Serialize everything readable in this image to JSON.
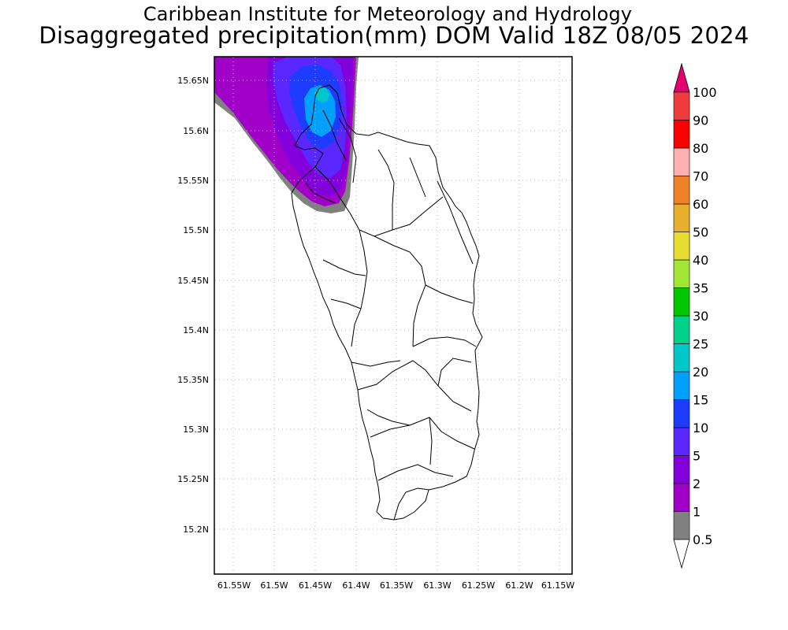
{
  "titles": {
    "line1": "Caribbean Institute for Meteorology and Hydrology",
    "line2": "Disaggregated precipitation(mm) DOM Valid 18Z 08/05 2024"
  },
  "axes": {
    "lat_labels": [
      "15.65N",
      "15.6N",
      "15.55N",
      "15.5N",
      "15.45N",
      "15.4N",
      "15.35N",
      "15.3N",
      "15.25N",
      "15.2N"
    ],
    "lon_labels": [
      "61.55W",
      "61.5W",
      "61.45W",
      "61.4W",
      "61.35W",
      "61.3W",
      "61.25W",
      "61.2W",
      "61.15W"
    ],
    "lat_values": [
      15.65,
      15.6,
      15.55,
      15.5,
      15.45,
      15.4,
      15.35,
      15.3,
      15.25,
      15.2
    ],
    "lon_values": [
      -61.55,
      -61.5,
      -61.45,
      -61.4,
      -61.35,
      -61.3,
      -61.25,
      -61.2,
      -61.15
    ]
  },
  "colorbar": {
    "levels": [
      "0.5",
      "1",
      "2",
      "5",
      "10",
      "15",
      "20",
      "25",
      "30",
      "35",
      "40",
      "50",
      "60",
      "70",
      "80",
      "90",
      "100"
    ],
    "colors": [
      "#808080",
      "#a000c8",
      "#8200dc",
      "#5a28ff",
      "#1e3cff",
      "#00a0ff",
      "#00c8c8",
      "#00d28c",
      "#00c800",
      "#a0e632",
      "#e6dc32",
      "#e6af2d",
      "#f08228",
      "#ffafaf",
      "#fa0000",
      "#f03c3c",
      "#e6006e"
    ],
    "colors_explained": "grey 0.5-1, purple shades 1-5, blues 5-20, teal/greens 20-35, yellow/orange 40-70, pinks/reds 70-100+"
  }
}
